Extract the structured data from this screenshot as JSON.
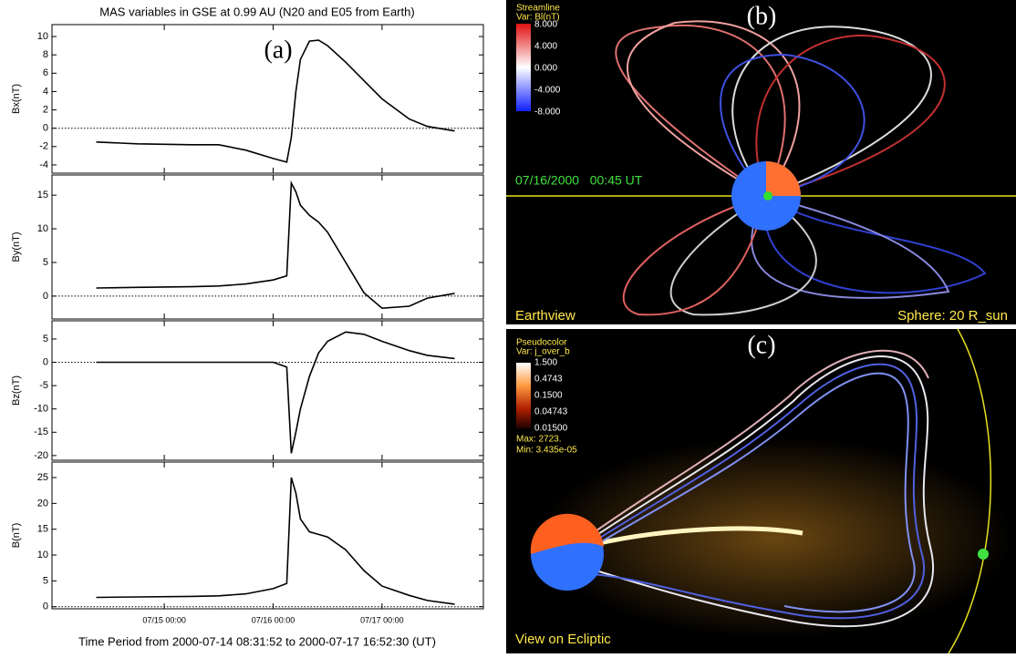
{
  "title": "MAS variables in GSE at 0.99 AU (N20 and E05 from Earth)",
  "xlabel": "Time Period from 2000-07-14 08:31:52 to 2000-07-17 16:52:30 (UT)",
  "chart_data": [
    {
      "type": "line",
      "panel_label": "(a)",
      "ylabel": "Bx(nT)",
      "color": "#000000",
      "x": [
        "07/14 09:00",
        "07/14 18:00",
        "07/15 06:00",
        "07/15 12:00",
        "07/15 18:00",
        "07/16 00:00",
        "07/16 03:00",
        "07/16 04:00",
        "07/16 05:00",
        "07/16 06:00",
        "07/16 08:00",
        "07/16 10:00",
        "07/16 12:00",
        "07/16 16:00",
        "07/16 20:00",
        "07/17 00:00",
        "07/17 06:00",
        "07/17 10:00",
        "07/17 16:00"
      ],
      "values": [
        -1.5,
        -1.7,
        -1.8,
        -1.8,
        -2.4,
        -3.3,
        -3.7,
        -1,
        4,
        7.5,
        9.5,
        9.6,
        9.0,
        7.2,
        5.2,
        3.2,
        1.0,
        0.2,
        -0.3
      ],
      "ylim": [
        -4.9,
        11.3
      ],
      "yticks": [
        -4,
        -2,
        0,
        2,
        4,
        6,
        8,
        10
      ]
    },
    {
      "type": "line",
      "ylabel": "By(nT)",
      "color": "#000000",
      "x": [
        "07/14 09:00",
        "07/14 18:00",
        "07/15 06:00",
        "07/15 12:00",
        "07/15 18:00",
        "07/16 00:00",
        "07/16 03:00",
        "07/16 04:00",
        "07/16 05:00",
        "07/16 06:00",
        "07/16 08:00",
        "07/16 10:00",
        "07/16 12:00",
        "07/16 16:00",
        "07/16 20:00",
        "07/17 00:00",
        "07/17 06:00",
        "07/17 10:00",
        "07/17 16:00"
      ],
      "values": [
        1.2,
        1.3,
        1.4,
        1.5,
        1.8,
        2.4,
        3,
        16.8,
        15.5,
        13.5,
        12,
        11,
        9.5,
        5,
        0.5,
        -1.8,
        -1.5,
        -0.3,
        0.4
      ],
      "ylim": [
        -3.4,
        18
      ],
      "yticks": [
        0,
        5,
        10,
        15
      ]
    },
    {
      "type": "line",
      "ylabel": "Bz(nT)",
      "color": "#000000",
      "x": [
        "07/14 09:00",
        "07/14 18:00",
        "07/15 06:00",
        "07/15 12:00",
        "07/15 18:00",
        "07/16 00:00",
        "07/16 03:00",
        "07/16 04:00",
        "07/16 05:00",
        "07/16 06:00",
        "07/16 08:00",
        "07/16 10:00",
        "07/16 12:00",
        "07/16 16:00",
        "07/16 20:00",
        "07/17 00:00",
        "07/17 06:00",
        "07/17 10:00",
        "07/17 16:00"
      ],
      "values": [
        0,
        0,
        0,
        0,
        0,
        0,
        -1,
        -19.5,
        -15,
        -10,
        -3,
        2,
        4.5,
        6.5,
        6,
        4.5,
        2.5,
        1.5,
        0.8
      ],
      "ylim": [
        -21,
        8.9
      ],
      "yticks": [
        -20,
        -15,
        -10,
        -5,
        0,
        5
      ]
    },
    {
      "type": "line",
      "ylabel": "B(nT)",
      "color": "#000000",
      "x": [
        "07/14 09:00",
        "07/14 18:00",
        "07/15 06:00",
        "07/15 12:00",
        "07/15 18:00",
        "07/16 00:00",
        "07/16 03:00",
        "07/16 04:00",
        "07/16 05:00",
        "07/16 06:00",
        "07/16 08:00",
        "07/16 10:00",
        "07/16 12:00",
        "07/16 16:00",
        "07/16 20:00",
        "07/17 00:00",
        "07/17 06:00",
        "07/17 10:00",
        "07/17 16:00"
      ],
      "values": [
        1.8,
        1.9,
        2,
        2.1,
        2.5,
        3.5,
        4.5,
        25,
        22,
        17,
        14.5,
        14,
        13.5,
        11,
        7,
        4,
        2.2,
        1.2,
        0.5
      ],
      "ylim": [
        -0.4,
        28
      ],
      "yticks": [
        0,
        5,
        10,
        15,
        20,
        25
      ],
      "xlim": [
        "07/13 23:15",
        "07/17 22:20"
      ],
      "xticks": [
        "07/15 00:00",
        "07/16 00:00",
        "07/17 00:00"
      ]
    }
  ],
  "panel_b": {
    "label": "(b)",
    "legend_title": "Streamline",
    "legend_var": "Var: Bl(nT)",
    "colorbar": [
      "8.000",
      "4.000",
      "0.000",
      "-4.000",
      "-8.000"
    ],
    "time": "07/16/2000   00:45 UT",
    "view": "Earthview",
    "sphere": "Sphere: 20 R_sun"
  },
  "panel_c": {
    "label": "(c)",
    "legend_title": "Pseudocolor",
    "legend_var": "Var: j_over_b",
    "colorbar": [
      "1.500",
      "0.4743",
      "0.1500",
      "0.04743",
      "0.01500"
    ],
    "max": "Max: 2723.",
    "min": "Min: 3.435e-05",
    "view": "View on Ecliptic"
  }
}
